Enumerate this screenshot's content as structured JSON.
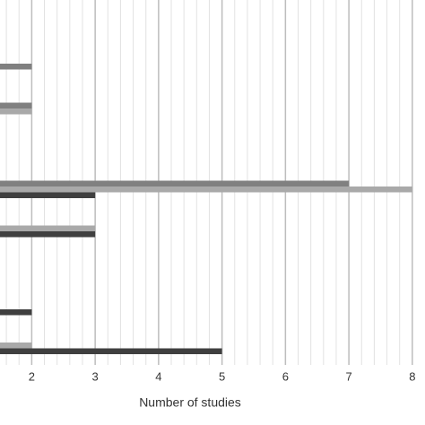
{
  "chart_data": {
    "type": "bar",
    "orientation": "horizontal",
    "x_label": "Number of studies",
    "categories": [
      null,
      null,
      null,
      null,
      null,
      null,
      null,
      null
    ],
    "series": [
      {
        "color": "#808080",
        "values": [
          2,
          2,
          null,
          7,
          null,
          null,
          null,
          null
        ]
      },
      {
        "color": "#a9a9a9",
        "values": [
          null,
          2,
          null,
          8,
          3,
          null,
          null,
          2
        ]
      },
      {
        "color": "#3f3f3f",
        "values": [
          null,
          null,
          null,
          3,
          3,
          null,
          2,
          5
        ]
      }
    ],
    "xlim": [
      1.5,
      8.2
    ],
    "xticks": [
      2,
      3,
      4,
      5,
      6,
      7,
      8
    ],
    "grid": true,
    "minor_grid": true
  }
}
